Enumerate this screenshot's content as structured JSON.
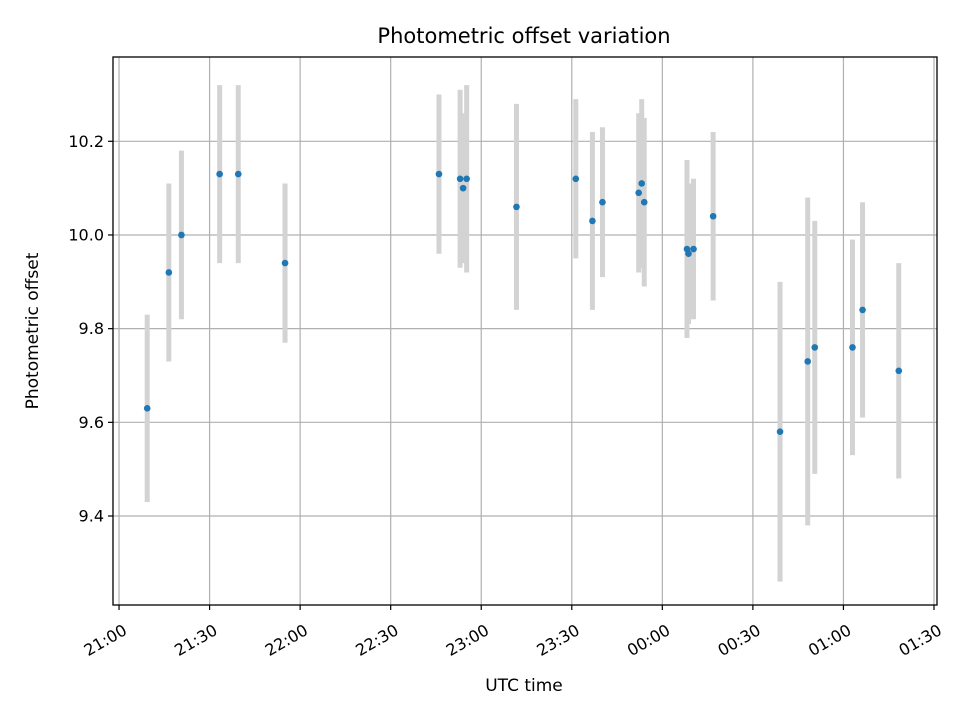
{
  "chart_data": {
    "type": "scatter",
    "title": "Photometric offset variation",
    "xlabel": "UTC time",
    "ylabel": "Photometric offset",
    "x_domain": [
      "2000-01-01T20:58:00",
      "2000-01-02T01:31:00"
    ],
    "ylim": [
      9.21,
      10.38
    ],
    "x_ticks": [
      {
        "t": "2000-01-01T21:00:00",
        "label": "21:00"
      },
      {
        "t": "2000-01-01T21:30:00",
        "label": "21:30"
      },
      {
        "t": "2000-01-01T22:00:00",
        "label": "22:00"
      },
      {
        "t": "2000-01-01T22:30:00",
        "label": "22:30"
      },
      {
        "t": "2000-01-01T23:00:00",
        "label": "23:00"
      },
      {
        "t": "2000-01-01T23:30:00",
        "label": "23:30"
      },
      {
        "t": "2000-01-02T00:00:00",
        "label": "00:00"
      },
      {
        "t": "2000-01-02T00:30:00",
        "label": "00:30"
      },
      {
        "t": "2000-01-02T01:00:00",
        "label": "01:00"
      },
      {
        "t": "2000-01-02T01:30:00",
        "label": "01:30"
      }
    ],
    "y_ticks": [
      {
        "v": 9.4,
        "label": "9.4"
      },
      {
        "v": 9.6,
        "label": "9.6"
      },
      {
        "v": 9.8,
        "label": "9.8"
      },
      {
        "v": 10.0,
        "label": "10.0"
      },
      {
        "v": 10.2,
        "label": "10.2"
      }
    ],
    "grid": true,
    "marker_color": "#1f77b4",
    "errorbar_color": "#d3d3d3",
    "points": [
      {
        "t": "2000-01-01T21:09:20",
        "y": 9.63,
        "err": 0.2
      },
      {
        "t": "2000-01-01T21:16:30",
        "y": 9.92,
        "err": 0.19
      },
      {
        "t": "2000-01-01T21:20:40",
        "y": 10.0,
        "err": 0.18
      },
      {
        "t": "2000-01-01T21:33:20",
        "y": 10.13,
        "err": 0.19
      },
      {
        "t": "2000-01-01T21:39:30",
        "y": 10.13,
        "err": 0.19
      },
      {
        "t": "2000-01-01T21:55:00",
        "y": 9.94,
        "err": 0.17
      },
      {
        "t": "2000-01-01T22:46:00",
        "y": 10.13,
        "err": 0.17
      },
      {
        "t": "2000-01-01T22:53:00",
        "y": 10.12,
        "err": 0.19
      },
      {
        "t": "2000-01-01T22:54:00",
        "y": 10.1,
        "err": 0.16
      },
      {
        "t": "2000-01-01T22:55:10",
        "y": 10.12,
        "err": 0.2
      },
      {
        "t": "2000-01-01T23:11:40",
        "y": 10.06,
        "err": 0.22
      },
      {
        "t": "2000-01-01T23:31:20",
        "y": 10.12,
        "err": 0.17
      },
      {
        "t": "2000-01-01T23:36:50",
        "y": 10.03,
        "err": 0.19
      },
      {
        "t": "2000-01-01T23:40:10",
        "y": 10.07,
        "err": 0.16
      },
      {
        "t": "2000-01-01T23:52:10",
        "y": 10.09,
        "err": 0.17
      },
      {
        "t": "2000-01-01T23:53:10",
        "y": 10.11,
        "err": 0.18
      },
      {
        "t": "2000-01-01T23:54:00",
        "y": 10.07,
        "err": 0.18
      },
      {
        "t": "2000-01-02T00:08:10",
        "y": 9.97,
        "err": 0.19
      },
      {
        "t": "2000-01-02T00:08:40",
        "y": 9.96,
        "err": 0.15
      },
      {
        "t": "2000-01-02T00:10:20",
        "y": 9.97,
        "err": 0.15
      },
      {
        "t": "2000-01-02T00:16:50",
        "y": 10.04,
        "err": 0.18
      },
      {
        "t": "2000-01-02T00:39:00",
        "y": 9.58,
        "err": 0.32
      },
      {
        "t": "2000-01-02T00:48:10",
        "y": 9.73,
        "err": 0.35
      },
      {
        "t": "2000-01-02T00:50:30",
        "y": 9.76,
        "err": 0.27
      },
      {
        "t": "2000-01-02T01:03:00",
        "y": 9.76,
        "err": 0.23
      },
      {
        "t": "2000-01-02T01:06:20",
        "y": 9.84,
        "err": 0.23
      },
      {
        "t": "2000-01-02T01:18:20",
        "y": 9.71,
        "err": 0.23
      }
    ]
  }
}
